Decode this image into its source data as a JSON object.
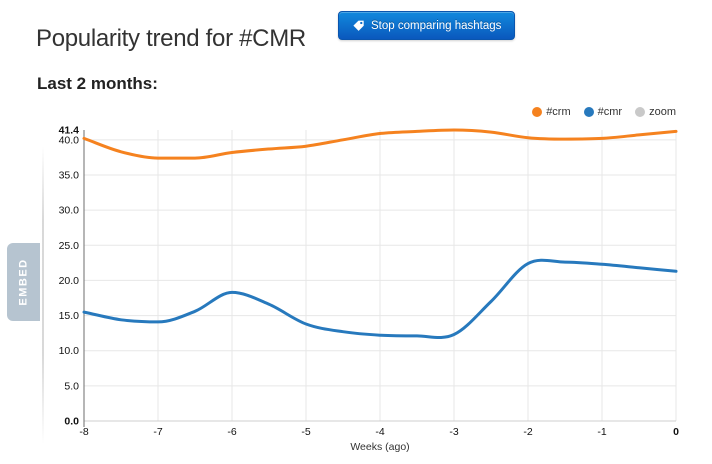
{
  "header": {
    "title": "Popularity trend for #CMR",
    "stop_button_label": "Stop comparing hashtags"
  },
  "section": {
    "title": "Last 2 months:"
  },
  "embed_tab": {
    "label": "EMBED"
  },
  "colors": {
    "accent_orange": "#f5821f",
    "accent_blue": "#2779bd",
    "legend_gray": "#c9c9c9",
    "button_blue_top": "#1189dd",
    "button_blue_bottom": "#0a58bd",
    "embed_tab_bg": "#b6c4d0",
    "grid": "#e7e7e7",
    "axis": "#6e6e6e"
  },
  "chart_data": {
    "type": "line",
    "title": "",
    "xlabel": "Weeks (ago)",
    "ylabel": "",
    "xlim": [
      -8,
      0
    ],
    "ylim": [
      0,
      41.4
    ],
    "grid": true,
    "legend_position": "top-right",
    "x_ticks": [
      "-8",
      "-7",
      "-6",
      "-5",
      "-4",
      "-3",
      "-2",
      "-1",
      "0"
    ],
    "y_ticks": [
      "0.0",
      "5.0",
      "10.0",
      "15.0",
      "20.0",
      "25.0",
      "30.0",
      "35.0",
      "40.0"
    ],
    "y_max_label": "41.4",
    "legend": [
      {
        "name": "#crm",
        "color": "#f5821f"
      },
      {
        "name": "#cmr",
        "color": "#2779bd"
      },
      {
        "name": "zoom",
        "color": "#c9c9c9"
      }
    ],
    "series": [
      {
        "name": "#crm",
        "color": "#f5821f",
        "x": [
          -8,
          -7.5,
          -7,
          -6.5,
          -6,
          -5.5,
          -5,
          -4.5,
          -4,
          -3.5,
          -3,
          -2.5,
          -2,
          -1.5,
          -1,
          -0.5,
          0
        ],
        "values": [
          40.2,
          38.3,
          37.4,
          37.4,
          38.2,
          38.7,
          39.1,
          40.0,
          40.9,
          41.2,
          41.4,
          41.1,
          40.3,
          40.1,
          40.2,
          40.7,
          41.2
        ]
      },
      {
        "name": "#cmr",
        "color": "#2779bd",
        "x": [
          -8,
          -7.5,
          -7,
          -6.5,
          -6,
          -5.5,
          -5,
          -4.5,
          -4,
          -3.5,
          -3,
          -2.5,
          -2,
          -1.5,
          -1,
          -0.5,
          0
        ],
        "values": [
          15.5,
          14.4,
          14.1,
          15.6,
          18.3,
          16.6,
          13.8,
          12.7,
          12.2,
          12.1,
          12.3,
          17.0,
          22.4,
          22.6,
          22.3,
          21.8,
          21.3
        ]
      }
    ]
  }
}
